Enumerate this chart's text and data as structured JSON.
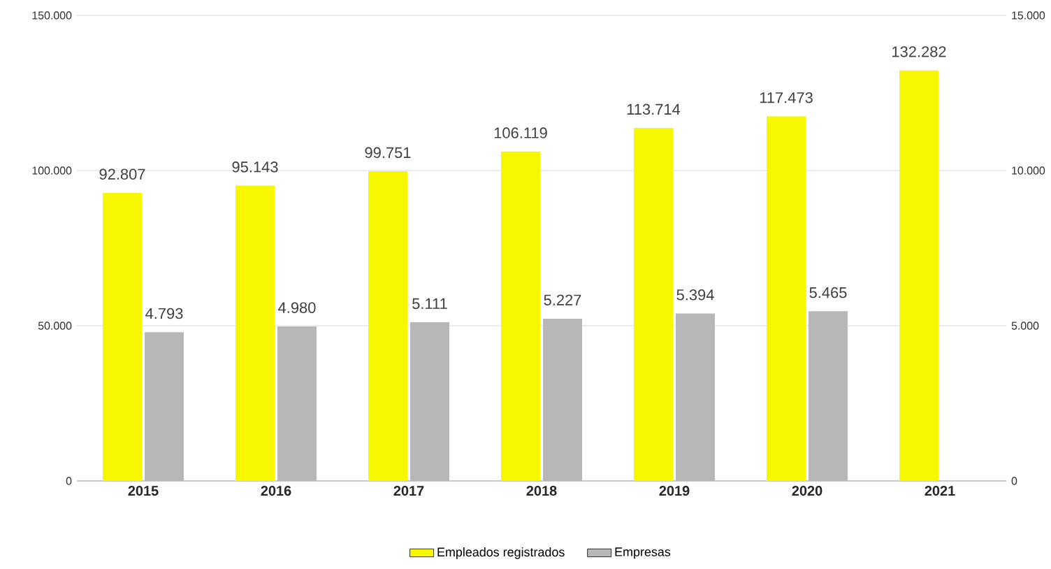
{
  "chart_data": {
    "type": "bar",
    "categories": [
      "2015",
      "2016",
      "2017",
      "2018",
      "2019",
      "2020",
      "2021"
    ],
    "series": [
      {
        "name": "Empleados registrados",
        "color": "#f7f700",
        "values": [
          92807,
          95143,
          99751,
          106119,
          113714,
          117473,
          132282
        ],
        "value_labels": [
          "92.807",
          "95.143",
          "99.751",
          "106.119",
          "113.714",
          "117.473",
          "132.282"
        ]
      },
      {
        "name": "Empresas",
        "color": "#b7b7b7",
        "axis": "y2",
        "values": [
          4793,
          4980,
          5111,
          5227,
          5394,
          5465,
          null
        ],
        "value_labels": [
          "4.793",
          "4.980",
          "5.111",
          "5.227",
          "5.394",
          "5.465",
          null
        ]
      }
    ],
    "ylim": [
      0,
      150000
    ],
    "yticks": [
      {
        "value": 0,
        "label": "0"
      },
      {
        "value": 50000,
        "label": "50.000"
      },
      {
        "value": 100000,
        "label": "100.000"
      },
      {
        "value": 150000,
        "label": "150.000"
      }
    ],
    "y2lim": [
      0,
      15000
    ],
    "y2ticks": [
      {
        "value": 0,
        "label": "0"
      },
      {
        "value": 5000,
        "label": "5.000"
      },
      {
        "value": 10000,
        "label": "10.000"
      },
      {
        "value": 15000,
        "label": "15.000"
      }
    ],
    "grid": "y",
    "legend": "bottom"
  }
}
